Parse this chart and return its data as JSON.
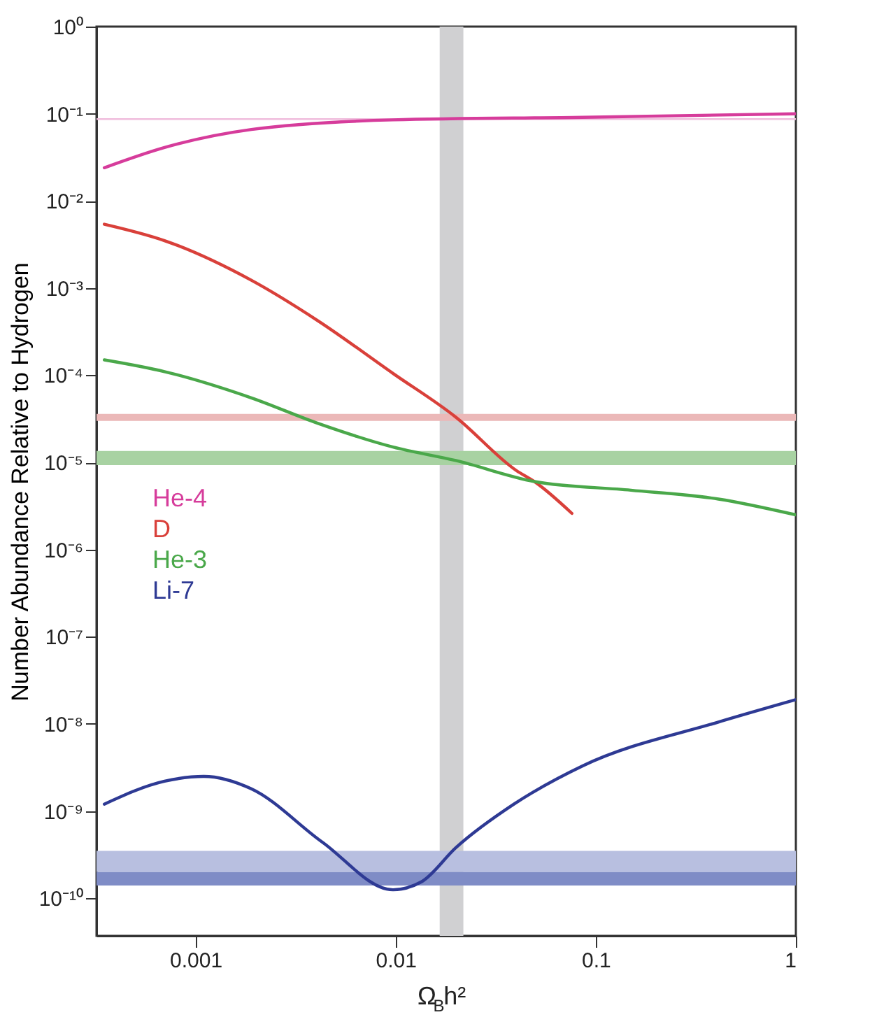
{
  "chart_data": {
    "type": "line",
    "xlabel": "Ω$_{B}$h²",
    "ylabel": "Number Abundance Relative to Hydrogen",
    "log": "xy",
    "grid": false,
    "legend": "left",
    "line_style": "solid",
    "marker": "none",
    "xlim": [
      0.00032,
      1
    ],
    "ylim": [
      3.7e-11,
      1
    ],
    "xticks": [
      0.001,
      0.01,
      0.1,
      1
    ],
    "yticks": [
      {
        "value": 1,
        "label": "10⁰"
      },
      {
        "value": 0.1,
        "label": "10⁻¹"
      },
      {
        "value": 0.01,
        "label": "10⁻²"
      },
      {
        "value": 0.001,
        "label": "10⁻³"
      },
      {
        "value": 0.0001,
        "label": "10⁻⁴"
      },
      {
        "value": 1e-05,
        "label": "10⁻⁵"
      },
      {
        "value": 1e-06,
        "label": "10⁻⁶"
      },
      {
        "value": 1e-07,
        "label": "10⁻⁷"
      },
      {
        "value": 1e-08,
        "label": "10⁻⁸"
      },
      {
        "value": 1e-09,
        "label": "10⁻⁹"
      },
      {
        "value": 1e-10,
        "label": "10⁻¹⁰"
      }
    ],
    "bands": [
      {
        "axis": "x",
        "from": 0.0166,
        "to": 0.0218,
        "color": "#d0d0d2"
      },
      {
        "axis": "y",
        "from": 0.085,
        "to": 0.089,
        "color": "#f0bcdc"
      },
      {
        "axis": "y",
        "from": 3e-05,
        "to": 3.6e-05,
        "color": "#ebb8b8"
      },
      {
        "axis": "y",
        "from": 9.3e-06,
        "to": 1.35e-05,
        "color": "#a8d2a2"
      },
      {
        "axis": "y",
        "from": 2e-10,
        "to": 3.5e-10,
        "color": "#b8bfe0"
      },
      {
        "axis": "y",
        "from": 1.4e-10,
        "to": 2e-10,
        "color": "#7f8cc6"
      }
    ],
    "series": [
      {
        "name": "He-4",
        "color": "#d63c9b",
        "x": [
          0.00035,
          0.0007,
          0.0019,
          0.0097,
          0.086,
          1
        ],
        "values": [
          0.024,
          0.041,
          0.066,
          0.085,
          0.091,
          0.1
        ]
      },
      {
        "name": "D",
        "color": "#d9403a",
        "x": [
          0.00035,
          0.0007,
          0.0019,
          0.0041,
          0.0097,
          0.02,
          0.04,
          0.05,
          0.076
        ],
        "values": [
          0.0054,
          0.0035,
          0.00123,
          0.00042,
          0.000105,
          3.3e-05,
          8.1e-06,
          5.9e-06,
          2.6e-06
        ]
      },
      {
        "name": "He-3",
        "color": "#4aa84a",
        "x": [
          0.00035,
          0.0007,
          0.0019,
          0.0041,
          0.0097,
          0.02,
          0.05,
          0.15,
          0.41,
          1
        ],
        "values": [
          0.00015,
          0.00011,
          5.5e-05,
          2.8e-05,
          1.5e-05,
          1.05e-05,
          6e-06,
          4.8e-06,
          3.8e-06,
          2.5e-06
        ]
      },
      {
        "name": "Li-7",
        "color": "#2e3a94",
        "x": [
          0.00035,
          0.0007,
          0.0011,
          0.0019,
          0.0043,
          0.0097,
          0.0135,
          0.02,
          0.039,
          0.086,
          0.41,
          1
        ],
        "values": [
          1.2e-09,
          2.2e-09,
          2.5e-09,
          1.8e-09,
          4.4e-10,
          1.25e-10,
          1.55e-10,
          3.8e-10,
          1.2e-09,
          3.3e-09,
          1.05e-08,
          1.9e-08
        ]
      }
    ]
  }
}
